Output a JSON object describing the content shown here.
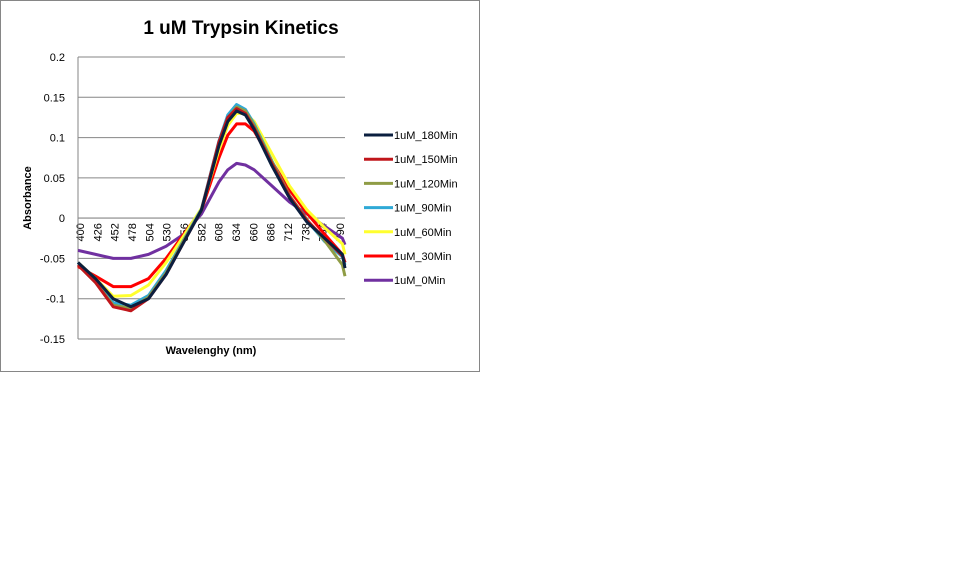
{
  "chart_data": {
    "type": "line",
    "title": "1 uM Trypsin Kinetics",
    "xlabel": "Wavelenghy (nm)",
    "ylabel": "Absorbance",
    "xlim": [
      400,
      703
    ],
    "ylim": [
      -0.15,
      0.2
    ],
    "yticks": [
      "-0.15",
      "-0.1",
      "-0.05",
      "0",
      "0.05",
      "0.1",
      "0.15",
      "0.2"
    ],
    "xticks": [
      "400",
      "426",
      "452",
      "478",
      "504",
      "530",
      "556",
      "582",
      "608",
      "634",
      "660",
      "686",
      "712",
      "738",
      "764",
      "790"
    ],
    "grid": "horizontal",
    "legend_position": "right",
    "x": [
      400,
      420,
      440,
      460,
      480,
      500,
      520,
      540,
      560,
      570,
      580,
      590,
      600,
      620,
      640,
      660,
      680,
      700,
      703
    ],
    "series": [
      {
        "name": "1uM_180Min",
        "color": "#0b1f3f",
        "values": [
          -0.055,
          -0.075,
          -0.1,
          -0.11,
          -0.1,
          -0.07,
          -0.03,
          0.01,
          0.09,
          0.12,
          0.133,
          0.128,
          0.11,
          0.065,
          0.025,
          -0.005,
          -0.025,
          -0.045,
          -0.062
        ]
      },
      {
        "name": "1uM_150Min",
        "color": "#c0161b",
        "values": [
          -0.058,
          -0.08,
          -0.11,
          -0.115,
          -0.1,
          -0.07,
          -0.03,
          0.01,
          0.095,
          0.125,
          0.136,
          0.13,
          0.112,
          0.068,
          0.027,
          -0.003,
          -0.025,
          -0.047,
          -0.055
        ]
      },
      {
        "name": "1uM_120Min",
        "color": "#8f9c45",
        "values": [
          -0.058,
          -0.08,
          -0.108,
          -0.112,
          -0.098,
          -0.068,
          -0.028,
          0.01,
          0.094,
          0.124,
          0.138,
          0.133,
          0.115,
          0.07,
          0.028,
          -0.002,
          -0.028,
          -0.058,
          -0.072
        ]
      },
      {
        "name": "1uM_90Min",
        "color": "#2fa9d6",
        "values": [
          -0.055,
          -0.078,
          -0.105,
          -0.108,
          -0.096,
          -0.065,
          -0.027,
          0.011,
          0.096,
          0.128,
          0.141,
          0.135,
          0.117,
          0.071,
          0.028,
          -0.003,
          -0.029,
          -0.048,
          -0.058
        ]
      },
      {
        "name": "1uM_60Min",
        "color": "#ffff2e",
        "values": [
          -0.055,
          -0.075,
          -0.097,
          -0.096,
          -0.083,
          -0.055,
          -0.022,
          0.012,
          0.085,
          0.115,
          0.13,
          0.13,
          0.12,
          0.08,
          0.04,
          0.01,
          -0.012,
          -0.032,
          -0.045
        ]
      },
      {
        "name": "1uM_30Min",
        "color": "#ff0000",
        "values": [
          -0.06,
          -0.072,
          -0.085,
          -0.085,
          -0.075,
          -0.05,
          -0.02,
          0.01,
          0.075,
          0.103,
          0.117,
          0.117,
          0.108,
          0.07,
          0.035,
          0.006,
          -0.02,
          -0.045,
          -0.055
        ]
      },
      {
        "name": "1uM_0Min",
        "color": "#7030a0",
        "values": [
          -0.04,
          -0.045,
          -0.05,
          -0.05,
          -0.045,
          -0.035,
          -0.02,
          0.005,
          0.045,
          0.06,
          0.068,
          0.066,
          0.06,
          0.04,
          0.02,
          0.005,
          -0.01,
          -0.025,
          -0.033
        ]
      }
    ]
  }
}
